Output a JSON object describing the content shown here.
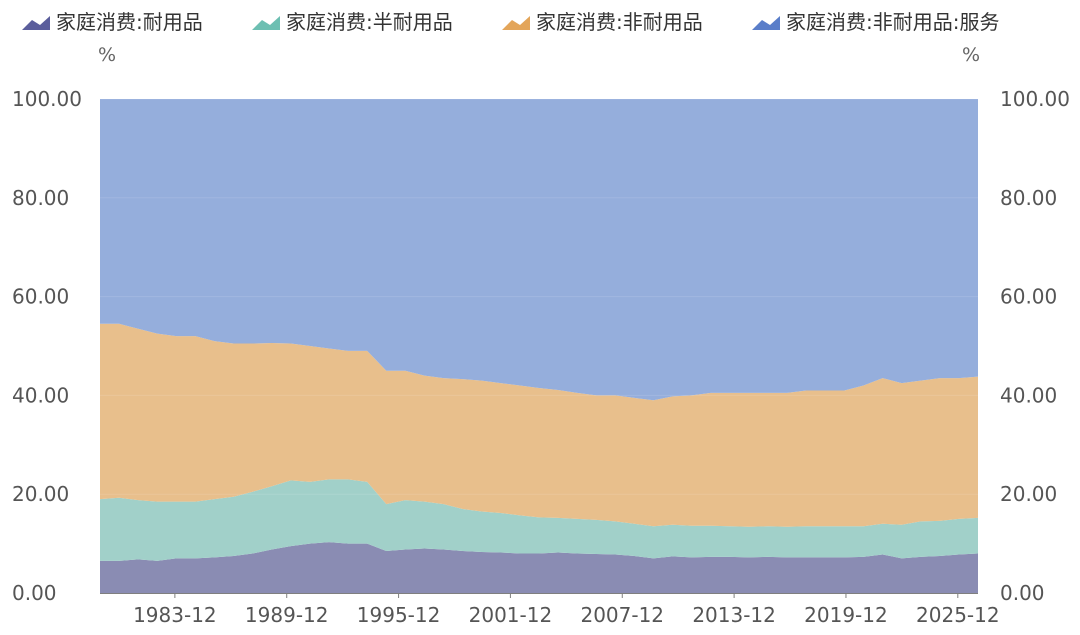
{
  "chart_data": {
    "type": "area",
    "stacked": true,
    "grid": true,
    "legend_position": "top",
    "unit_left": "%",
    "unit_right": "%",
    "x_tick_labels": [
      "1983-12",
      "1989-12",
      "1995-12",
      "2001-12",
      "2007-12",
      "2013-12",
      "2019-12",
      "2025-12"
    ],
    "x_range": [
      1979.9,
      2027.0
    ],
    "ylim": [
      0,
      100
    ],
    "y_ticks": [
      0,
      20,
      40,
      60,
      80,
      100
    ],
    "y_tick_labels": [
      "0.00",
      "20.00",
      "40.00",
      "60.00",
      "80.00",
      "100.00"
    ],
    "x": [
      1980.0,
      1981.0,
      1982.0,
      1983.0,
      1984.0,
      1985.0,
      1986.0,
      1987.0,
      1988.0,
      1989.0,
      1990.0,
      1991.0,
      1992.0,
      1993.0,
      1994.0,
      1995.0,
      1996.0,
      1997.0,
      1998.0,
      1999.0,
      2000.0,
      2001.0,
      2002.0,
      2003.0,
      2004.0,
      2005.0,
      2006.0,
      2007.0,
      2008.0,
      2009.0,
      2010.0,
      2011.0,
      2012.0,
      2013.0,
      2014.0,
      2015.0,
      2016.0,
      2017.0,
      2018.0,
      2019.0,
      2020.0,
      2021.0,
      2022.0,
      2023.0,
      2024.0,
      2025.0,
      2026.0
    ],
    "series": [
      {
        "name": "家庭消费:耐用品",
        "color": "#8a8cb3",
        "legend_color": "#5b5e9c",
        "values": [
          6.5,
          6.5,
          6.8,
          6.5,
          7.0,
          7.0,
          7.2,
          7.5,
          8.0,
          8.8,
          9.5,
          10.0,
          10.3,
          10.0,
          10.0,
          8.5,
          8.8,
          9.0,
          8.8,
          8.5,
          8.3,
          8.2,
          8.0,
          8.0,
          8.2,
          8.0,
          7.9,
          7.8,
          7.5,
          7.0,
          7.4,
          7.2,
          7.3,
          7.3,
          7.2,
          7.3,
          7.2,
          7.2,
          7.2,
          7.2,
          7.3,
          7.8,
          7.0,
          7.3,
          7.5,
          7.8,
          8.0
        ]
      },
      {
        "name": "家庭消费:半耐用品",
        "color": "#a1d0c9",
        "legend_color": "#6dbfb2",
        "values": [
          12.5,
          12.8,
          12.0,
          12.0,
          11.5,
          11.5,
          11.8,
          12.0,
          12.5,
          12.8,
          13.3,
          12.5,
          12.7,
          13.0,
          12.5,
          9.5,
          10.0,
          9.5,
          9.2,
          8.5,
          8.2,
          8.0,
          7.7,
          7.3,
          7.0,
          7.0,
          6.9,
          6.7,
          6.5,
          6.5,
          6.4,
          6.4,
          6.3,
          6.2,
          6.2,
          6.2,
          6.2,
          6.3,
          6.3,
          6.3,
          6.2,
          6.2,
          6.8,
          7.2,
          7.1,
          7.2,
          7.2
        ]
      },
      {
        "name": "家庭消费:非耐用品",
        "color": "#e8bf8c",
        "legend_color": "#e3a55a",
        "values": [
          35.5,
          35.2,
          34.7,
          34.0,
          33.5,
          33.5,
          32.0,
          31.0,
          30.0,
          29.0,
          27.7,
          27.5,
          26.5,
          26.0,
          26.5,
          27.0,
          26.2,
          25.5,
          25.5,
          26.3,
          26.5,
          26.3,
          26.3,
          26.2,
          25.9,
          25.5,
          25.2,
          25.5,
          25.5,
          25.5,
          26.0,
          26.4,
          26.9,
          27.0,
          27.1,
          27.0,
          27.1,
          27.5,
          27.5,
          27.5,
          28.5,
          29.5,
          28.7,
          28.5,
          28.9,
          28.5,
          28.6
        ]
      },
      {
        "name": "家庭消费:非耐用品:服务",
        "color": "#95aedc",
        "legend_color": "#5a7ec9",
        "values": [
          45.5,
          45.5,
          46.5,
          47.5,
          48.0,
          48.0,
          49.0,
          49.5,
          49.5,
          49.4,
          49.5,
          50.0,
          50.5,
          51.0,
          51.0,
          55.0,
          55.0,
          56.0,
          56.5,
          56.7,
          57.0,
          57.5,
          58.0,
          58.5,
          58.9,
          59.5,
          60.0,
          60.0,
          60.5,
          61.0,
          60.2,
          60.0,
          59.5,
          59.5,
          59.5,
          59.5,
          59.5,
          59.0,
          59.0,
          59.0,
          58.0,
          56.5,
          57.5,
          57.0,
          56.5,
          56.5,
          56.2
        ]
      }
    ]
  }
}
